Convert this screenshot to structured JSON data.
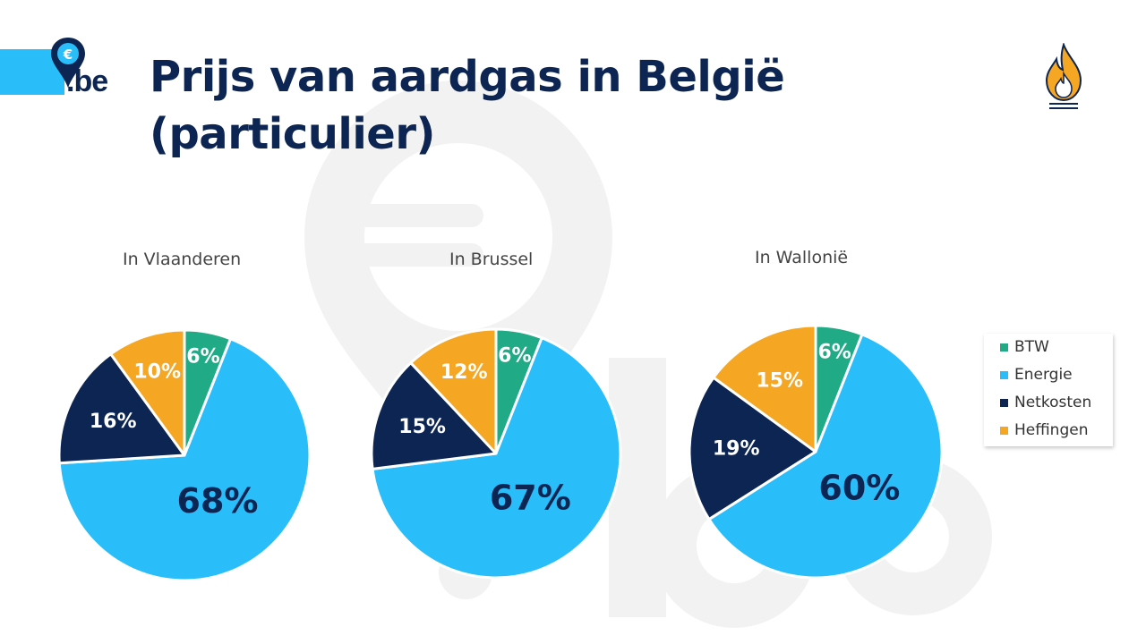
{
  "header": {
    "logo_text": ".be",
    "title_line1": "Prijs van aardgas in België",
    "title_line2": "(particulier)"
  },
  "colors": {
    "BTW": "#20ab86",
    "Energie": "#29bdfa",
    "Netkosten": "#0d2552",
    "Heffingen": "#f5a623",
    "brand": "#0d2552"
  },
  "legend": [
    {
      "name": "BTW"
    },
    {
      "name": "Energie"
    },
    {
      "name": "Netkosten"
    },
    {
      "name": "Heffingen"
    }
  ],
  "chart_data": [
    {
      "type": "pie",
      "title": "In Vlaanderen",
      "categories": [
        "BTW",
        "Energie",
        "Netkosten",
        "Heffingen"
      ],
      "values": [
        6,
        68,
        16,
        10
      ],
      "labels": [
        "6%",
        "68%",
        "16%",
        "10%"
      ]
    },
    {
      "type": "pie",
      "title": "In Brussel",
      "categories": [
        "BTW",
        "Energie",
        "Netkosten",
        "Heffingen"
      ],
      "values": [
        6,
        67,
        15,
        12
      ],
      "labels": [
        "6%",
        "67%",
        "15%",
        "12%"
      ]
    },
    {
      "type": "pie",
      "title": "In Wallonië",
      "categories": [
        "BTW",
        "Energie",
        "Netkosten",
        "Heffingen"
      ],
      "values": [
        6,
        60,
        19,
        15
      ],
      "labels": [
        "6%",
        "60%",
        "19%",
        "15%"
      ]
    }
  ]
}
